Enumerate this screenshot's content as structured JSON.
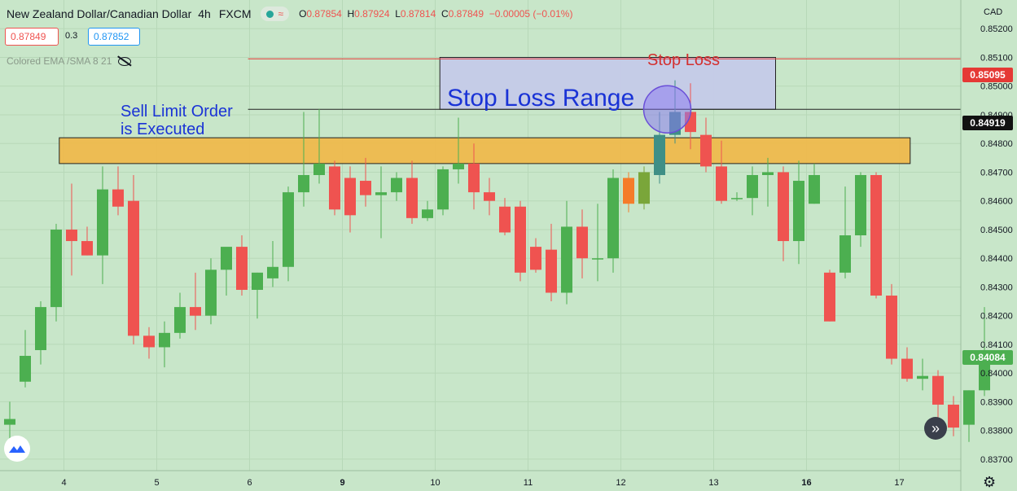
{
  "header": {
    "symbol": "New Zealand Dollar/Canadian Dollar",
    "timeframe": "4h",
    "source": "FXCM",
    "open_key": "O",
    "open": "0.87854",
    "high_key": "H",
    "high": "0.87924",
    "low_key": "L",
    "low": "0.87814",
    "close_key": "C",
    "close": "0.87849",
    "change": "−0.00005 (−0.01%)"
  },
  "trade": {
    "sell_price": "0.87849",
    "spread": "0.3",
    "buy_price": "0.87852"
  },
  "indicator": {
    "label": "Colored EMA /SMA 8 21"
  },
  "annotations": {
    "stop_loss": "Stop Loss",
    "stop_loss_range": "Stop Loss Range",
    "sell_limit_line1": "Sell Limit Order",
    "sell_limit_line2": "is Executed"
  },
  "axis": {
    "currency": "CAD",
    "stop_loss_price": "0.85095",
    "entry_price": "0.84919",
    "last_price": "0.84084"
  },
  "colors": {
    "background": "#c8e6c9",
    "bull": "#4caf50",
    "bear": "#ef5350",
    "zone_fill": "#f0b849",
    "range_fill": "#c5cae9",
    "stop_line": "#e53935"
  },
  "icons": {
    "eye": "eye-crossed-icon",
    "nav": "chevron-double-right-icon",
    "logo": "tradingview-logo-icon",
    "settings": "gear-icon"
  },
  "chart_data": {
    "type": "candlestick",
    "y_ticks": [
      "0.85200",
      "0.85100",
      "0.85000",
      "0.84900",
      "0.84800",
      "0.84700",
      "0.84600",
      "0.84500",
      "0.84400",
      "0.84300",
      "0.84200",
      "0.84100",
      "0.84000",
      "0.83900",
      "0.83800",
      "0.83700"
    ],
    "y_tick_values": [
      0.852,
      0.851,
      0.85,
      0.849,
      0.848,
      0.847,
      0.846,
      0.845,
      0.844,
      0.843,
      0.842,
      0.841,
      0.84,
      0.839,
      0.838,
      0.837
    ],
    "ylim": [
      0.8366,
      0.853
    ],
    "x_labels": [
      {
        "label": "4",
        "index": 3.5,
        "bold": false
      },
      {
        "label": "5",
        "index": 9.5,
        "bold": false
      },
      {
        "label": "6",
        "index": 15.5,
        "bold": false
      },
      {
        "label": "9",
        "index": 21.5,
        "bold": true
      },
      {
        "label": "10",
        "index": 27.5,
        "bold": false
      },
      {
        "label": "11",
        "index": 33.5,
        "bold": false
      },
      {
        "label": "12",
        "index": 39.5,
        "bold": false
      },
      {
        "label": "13",
        "index": 45.5,
        "bold": false
      },
      {
        "label": "16",
        "index": 51.5,
        "bold": true
      },
      {
        "label": "17",
        "index": 57.5,
        "bold": false
      }
    ],
    "candles": [
      {
        "o": 0.8382,
        "h": 0.839,
        "l": 0.8375,
        "c": 0.8384
      },
      {
        "o": 0.8397,
        "h": 0.8415,
        "l": 0.8395,
        "c": 0.8406
      },
      {
        "o": 0.8408,
        "h": 0.8425,
        "l": 0.8403,
        "c": 0.8423
      },
      {
        "o": 0.8423,
        "h": 0.8452,
        "l": 0.8418,
        "c": 0.845
      },
      {
        "o": 0.845,
        "h": 0.8466,
        "l": 0.8434,
        "c": 0.8446
      },
      {
        "o": 0.8446,
        "h": 0.8451,
        "l": 0.8441,
        "c": 0.8441
      },
      {
        "o": 0.8441,
        "h": 0.8472,
        "l": 0.8431,
        "c": 0.8464
      },
      {
        "o": 0.8464,
        "h": 0.8472,
        "l": 0.8455,
        "c": 0.8458
      },
      {
        "o": 0.846,
        "h": 0.8469,
        "l": 0.841,
        "c": 0.8413
      },
      {
        "o": 0.8413,
        "h": 0.8416,
        "l": 0.8405,
        "c": 0.8409
      },
      {
        "o": 0.8409,
        "h": 0.8418,
        "l": 0.8402,
        "c": 0.8414
      },
      {
        "o": 0.8414,
        "h": 0.8428,
        "l": 0.8412,
        "c": 0.8423
      },
      {
        "o": 0.8423,
        "h": 0.8435,
        "l": 0.8415,
        "c": 0.842
      },
      {
        "o": 0.842,
        "h": 0.844,
        "l": 0.8417,
        "c": 0.8436
      },
      {
        "o": 0.8436,
        "h": 0.8443,
        "l": 0.8427,
        "c": 0.8444
      },
      {
        "o": 0.8444,
        "h": 0.8448,
        "l": 0.8427,
        "c": 0.8429
      },
      {
        "o": 0.8429,
        "h": 0.8435,
        "l": 0.8419,
        "c": 0.8435
      },
      {
        "o": 0.8433,
        "h": 0.8446,
        "l": 0.843,
        "c": 0.8437
      },
      {
        "o": 0.8437,
        "h": 0.8465,
        "l": 0.8432,
        "c": 0.8463
      },
      {
        "o": 0.8463,
        "h": 0.8491,
        "l": 0.8458,
        "c": 0.8469
      },
      {
        "o": 0.8469,
        "h": 0.8492,
        "l": 0.8466,
        "c": 0.8473
      },
      {
        "o": 0.8472,
        "h": 0.8474,
        "l": 0.8455,
        "c": 0.8457
      },
      {
        "o": 0.8468,
        "h": 0.8472,
        "l": 0.8449,
        "c": 0.8455
      },
      {
        "o": 0.8467,
        "h": 0.8475,
        "l": 0.8458,
        "c": 0.8462
      },
      {
        "o": 0.8462,
        "h": 0.8472,
        "l": 0.8447,
        "c": 0.8463
      },
      {
        "o": 0.8463,
        "h": 0.847,
        "l": 0.846,
        "c": 0.8468
      },
      {
        "o": 0.8468,
        "h": 0.8474,
        "l": 0.8452,
        "c": 0.8454
      },
      {
        "o": 0.8454,
        "h": 0.846,
        "l": 0.8453,
        "c": 0.8457
      },
      {
        "o": 0.8457,
        "h": 0.8472,
        "l": 0.8455,
        "c": 0.8471
      },
      {
        "o": 0.8471,
        "h": 0.8489,
        "l": 0.8466,
        "c": 0.8473
      },
      {
        "o": 0.8473,
        "h": 0.848,
        "l": 0.8457,
        "c": 0.8463
      },
      {
        "o": 0.8463,
        "h": 0.8468,
        "l": 0.8455,
        "c": 0.846
      },
      {
        "o": 0.8458,
        "h": 0.8461,
        "l": 0.8448,
        "c": 0.8449
      },
      {
        "o": 0.8458,
        "h": 0.846,
        "l": 0.8432,
        "c": 0.8435
      },
      {
        "o": 0.8444,
        "h": 0.8447,
        "l": 0.8435,
        "c": 0.8436
      },
      {
        "o": 0.8443,
        "h": 0.8452,
        "l": 0.8425,
        "c": 0.8428
      },
      {
        "o": 0.8428,
        "h": 0.846,
        "l": 0.8424,
        "c": 0.8451
      },
      {
        "o": 0.8451,
        "h": 0.8457,
        "l": 0.8433,
        "c": 0.844
      },
      {
        "o": 0.844,
        "h": 0.8459,
        "l": 0.8432,
        "c": 0.844
      },
      {
        "o": 0.844,
        "h": 0.8471,
        "l": 0.8435,
        "c": 0.8468
      },
      {
        "o": 0.8468,
        "h": 0.847,
        "l": 0.8456,
        "c": 0.8459
      },
      {
        "o": 0.8459,
        "h": 0.8472,
        "l": 0.8457,
        "c": 0.847
      },
      {
        "o": 0.8469,
        "h": 0.8491,
        "l": 0.8466,
        "c": 0.8483
      },
      {
        "o": 0.8483,
        "h": 0.8502,
        "l": 0.848,
        "c": 0.8491
      },
      {
        "o": 0.8491,
        "h": 0.8501,
        "l": 0.8478,
        "c": 0.8484
      },
      {
        "o": 0.8483,
        "h": 0.8489,
        "l": 0.847,
        "c": 0.8472
      },
      {
        "o": 0.8472,
        "h": 0.8481,
        "l": 0.8459,
        "c": 0.846
      },
      {
        "o": 0.8461,
        "h": 0.8463,
        "l": 0.846,
        "c": 0.8461
      },
      {
        "o": 0.8461,
        "h": 0.8472,
        "l": 0.8455,
        "c": 0.8469
      },
      {
        "o": 0.8469,
        "h": 0.8475,
        "l": 0.8458,
        "c": 0.847
      },
      {
        "o": 0.847,
        "h": 0.8472,
        "l": 0.8439,
        "c": 0.8446
      },
      {
        "o": 0.8446,
        "h": 0.8474,
        "l": 0.8438,
        "c": 0.8467
      },
      {
        "o": 0.8459,
        "h": 0.8473,
        "l": 0.8459,
        "c": 0.8469
      },
      {
        "o": 0.8435,
        "h": 0.8436,
        "l": 0.8418,
        "c": 0.8418
      },
      {
        "o": 0.8435,
        "h": 0.8465,
        "l": 0.8433,
        "c": 0.8448
      },
      {
        "o": 0.8448,
        "h": 0.847,
        "l": 0.8444,
        "c": 0.8469
      },
      {
        "o": 0.8469,
        "h": 0.847,
        "l": 0.8426,
        "c": 0.8427
      },
      {
        "o": 0.8427,
        "h": 0.8431,
        "l": 0.8403,
        "c": 0.8405
      },
      {
        "o": 0.8405,
        "h": 0.8409,
        "l": 0.8397,
        "c": 0.8398
      },
      {
        "o": 0.8398,
        "h": 0.8405,
        "l": 0.8394,
        "c": 0.8399
      },
      {
        "o": 0.8399,
        "h": 0.8401,
        "l": 0.8381,
        "c": 0.8389
      },
      {
        "o": 0.8389,
        "h": 0.8392,
        "l": 0.8378,
        "c": 0.8381
      },
      {
        "o": 0.8382,
        "h": 0.8394,
        "l": 0.8376,
        "c": 0.8394
      },
      {
        "o": 0.8394,
        "h": 0.8423,
        "l": 0.8392,
        "c": 0.8408
      }
    ],
    "levels": {
      "stop_loss": 0.85095,
      "entry": 0.84919,
      "resistance_zone": [
        0.8473,
        0.8482
      ],
      "stop_loss_range": [
        0.84919,
        0.851
      ],
      "range_start_index": 27.8,
      "range_end_index": 49.5,
      "zone_start_index": 3.2,
      "zone_end_index": 58.2,
      "stop_line_start_index": 15.4,
      "entry_line_start_index": 15.4
    },
    "highlight_candles": [
      40,
      41,
      42,
      43
    ]
  }
}
